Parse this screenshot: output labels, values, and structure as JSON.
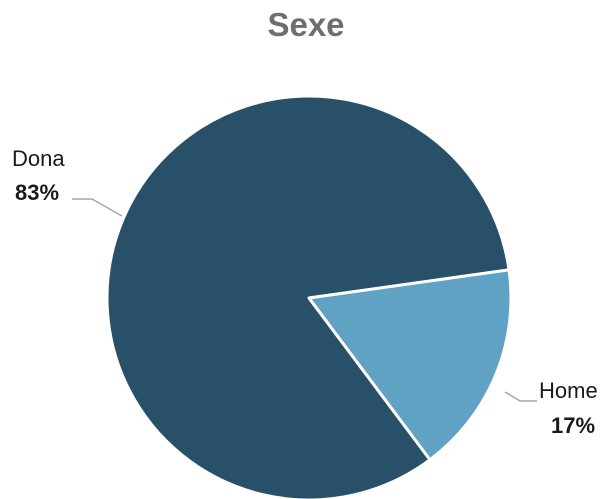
{
  "chart_data": {
    "type": "pie",
    "title": "Sexe",
    "categories": [
      "Dona",
      "Home"
    ],
    "values": [
      83,
      17
    ],
    "value_labels": [
      "83%",
      "17%"
    ],
    "colors": [
      "#285068",
      "#5fa2c4"
    ],
    "slice_border_color": "#ffffff",
    "leader_line_color": "#a6a6a6",
    "legend": "none"
  }
}
